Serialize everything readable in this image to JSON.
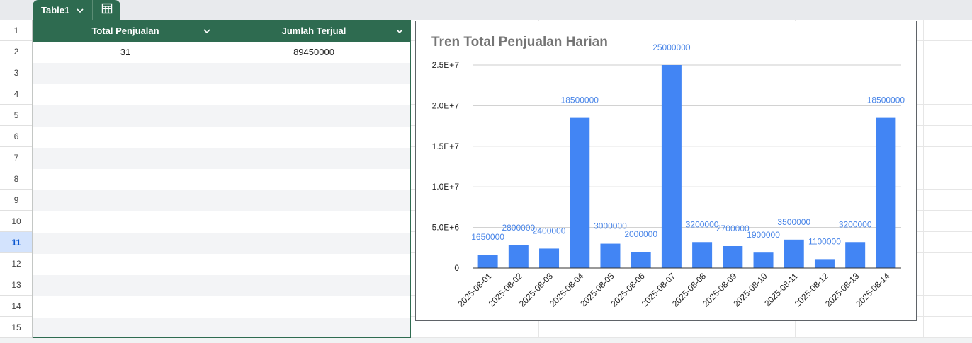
{
  "sheet": {
    "table_name": "Table1",
    "row_numbers": [
      "1",
      "2",
      "3",
      "4",
      "5",
      "6",
      "7",
      "8",
      "9",
      "10",
      "11",
      "12",
      "13",
      "14",
      "15"
    ],
    "active_row": "11"
  },
  "table": {
    "columns": [
      "Total Penjualan",
      "Jumlah Terjual"
    ],
    "rows": [
      [
        "31",
        "89450000"
      ]
    ]
  },
  "chart_data": {
    "type": "bar",
    "title": "Tren Total Penjualan Harian",
    "xlabel": "",
    "ylabel": "",
    "categories": [
      "2025-08-01",
      "2025-08-02",
      "2025-08-03",
      "2025-08-04",
      "2025-08-05",
      "2025-08-06",
      "2025-08-07",
      "2025-08-08",
      "2025-08-09",
      "2025-08-10",
      "2025-08-11",
      "2025-08-12",
      "2025-08-13",
      "2025-08-14"
    ],
    "values": [
      1650000,
      2800000,
      2400000,
      18500000,
      3000000,
      2000000,
      25000000,
      3200000,
      2700000,
      1900000,
      3500000,
      1100000,
      3200000,
      18500000
    ],
    "data_labels": [
      "1650000",
      "2800000",
      "2400000",
      "18500000",
      "3000000",
      "2000000",
      "25000000",
      "3200000",
      "2700000",
      "1900000",
      "3500000",
      "1100000",
      "3200000",
      "18500000"
    ],
    "ylim": [
      0,
      25000000
    ],
    "yticks": [
      0,
      5000000,
      10000000,
      15000000,
      20000000,
      25000000
    ],
    "ytick_labels": [
      "0",
      "5.0E+6",
      "1.0E+7",
      "1.5E+7",
      "2.0E+7",
      "2.5E+7"
    ],
    "bar_color": "#4285f4",
    "label_color": "#4a86e8",
    "grid": true,
    "legend": "none"
  },
  "colors": {
    "header_green": "#2e6b50",
    "active_row": "#d3e3fd"
  }
}
